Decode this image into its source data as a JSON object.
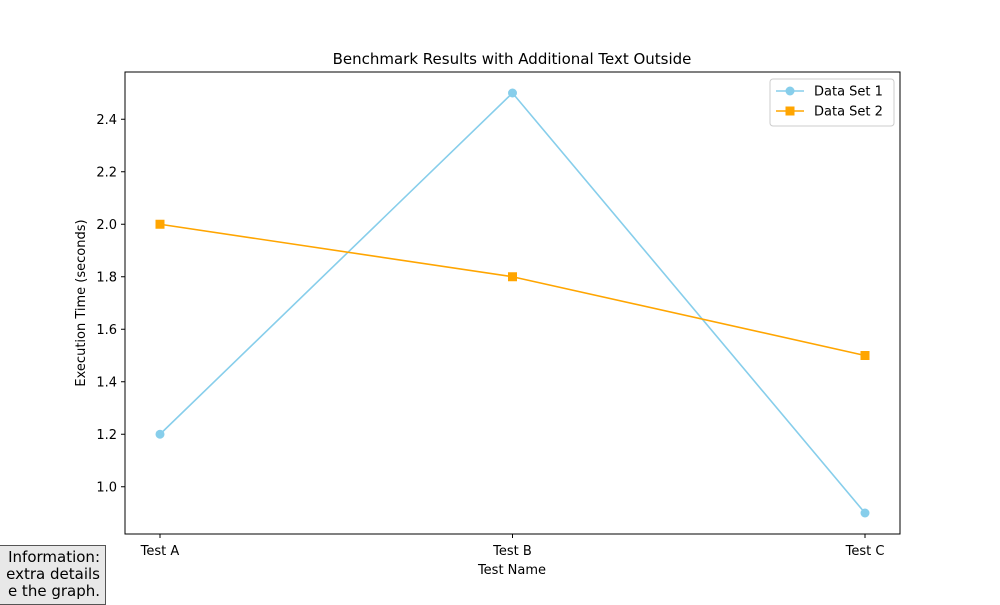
{
  "chart_data": {
    "type": "line",
    "title": "Benchmark Results with Additional Text Outside",
    "xlabel": "Test Name",
    "ylabel": "Execution Time (seconds)",
    "categories": [
      "Test A",
      "Test B",
      "Test C"
    ],
    "ylim": [
      0.82,
      2.58
    ],
    "yticks": [
      1.0,
      1.2,
      1.4,
      1.6,
      1.8,
      2.0,
      2.2,
      2.4
    ],
    "ytick_labels": [
      "1.0",
      "1.2",
      "1.4",
      "1.6",
      "1.8",
      "2.0",
      "2.2",
      "2.4"
    ],
    "grid": false,
    "legend_position": "top-right",
    "series": [
      {
        "name": "Data Set 1",
        "values": [
          1.2,
          2.5,
          0.9
        ],
        "color": "#87ceeb",
        "marker": "circle"
      },
      {
        "name": "Data Set 2",
        "values": [
          2.0,
          1.8,
          1.5
        ],
        "color": "#ffa500",
        "marker": "square"
      }
    ]
  },
  "note": {
    "lines": [
      "Information:",
      "extra details",
      "e the graph."
    ]
  }
}
